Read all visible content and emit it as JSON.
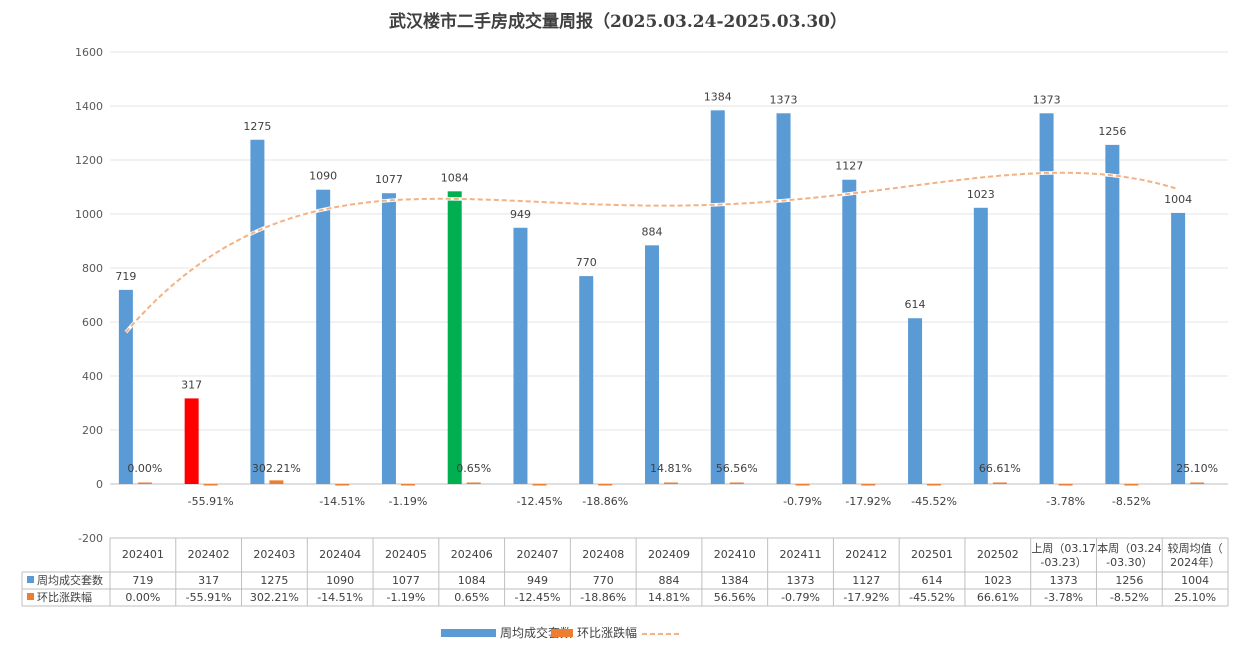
{
  "chart_data": {
    "type": "bar",
    "title": "武汉楼市二手房成交量周报（2025.03.24-2025.03.30）",
    "ylim": [
      -200,
      1600
    ],
    "yticks": [
      -200,
      0,
      200,
      400,
      600,
      800,
      1000,
      1200,
      1400,
      1600
    ],
    "grid": true,
    "legend_position": "bottom",
    "categories": [
      "202401",
      "202402",
      "202403",
      "202404",
      "202405",
      "202406",
      "202407",
      "202408",
      "202409",
      "202410",
      "202411",
      "202412",
      "202501",
      "202502",
      "上周（03.17-03.23）",
      "本周（03.24-03.30）",
      "较周均值（2024年）"
    ],
    "category_lines": [
      [
        "202401"
      ],
      [
        "202402"
      ],
      [
        "202403"
      ],
      [
        "202404"
      ],
      [
        "202405"
      ],
      [
        "202406"
      ],
      [
        "202407"
      ],
      [
        "202408"
      ],
      [
        "202409"
      ],
      [
        "202410"
      ],
      [
        "202411"
      ],
      [
        "202412"
      ],
      [
        "202501"
      ],
      [
        "202502"
      ],
      [
        "上周（03.17",
        "-03.23）"
      ],
      [
        "本周（03.24",
        "-03.30）"
      ],
      [
        "较周均值（",
        "2024年）"
      ]
    ],
    "series": [
      {
        "name": "周均成交套数",
        "values": [
          719,
          317,
          1275,
          1090,
          1077,
          1084,
          949,
          770,
          884,
          1384,
          1373,
          1127,
          614,
          1023,
          1373,
          1256,
          1004
        ],
        "color": "#5B9BD5",
        "highlight_colors": {
          "1": "#FF0000",
          "5": "#00B050"
        }
      },
      {
        "name": "环比涨跌幅",
        "values": [
          0.0,
          -55.91,
          302.21,
          -14.51,
          -1.19,
          0.65,
          -12.45,
          -18.86,
          14.81,
          56.56,
          -0.79,
          -17.92,
          -45.52,
          66.61,
          -3.78,
          -8.52,
          25.1
        ],
        "labels": [
          "0.00%",
          "-55.91%",
          "302.21%",
          "-14.51%",
          "-1.19%",
          "0.65%",
          "-12.45%",
          "-18.86%",
          "14.81%",
          "56.56%",
          "-0.79%",
          "-17.92%",
          "-45.52%",
          "66.61%",
          "-3.78%",
          "-8.52%",
          "25.10%"
        ],
        "color": "#ED7D31"
      }
    ],
    "trendline": {
      "color": "#F4B183"
    }
  }
}
